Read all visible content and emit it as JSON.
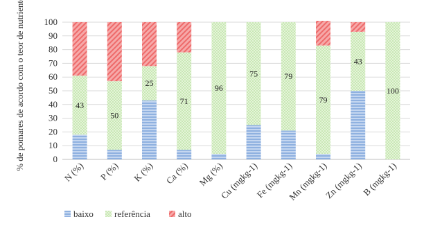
{
  "chart_data": {
    "type": "bar",
    "stacked": true,
    "orientation": "vertical",
    "categories": [
      "N (%)",
      "P (%)",
      "K (%)",
      "Ca (%)",
      "Mg (%)",
      "Cu (mgkg-1)",
      "Fe (mgkg-1)",
      "Mn (mgkg-1)",
      "Zn (mgkg-1)",
      "B (mgkg-1)"
    ],
    "series": [
      {
        "name": "baixo",
        "color": "#8fb1e0",
        "pattern": "horizontal-stripes",
        "values": [
          18,
          7,
          43,
          7,
          4,
          25,
          21,
          4,
          50,
          0
        ]
      },
      {
        "name": "referência",
        "color": "#a9d98c",
        "pattern": "dots",
        "values": [
          43,
          50,
          25,
          71,
          96,
          75,
          79,
          79,
          43,
          100
        ]
      },
      {
        "name": "alto",
        "color": "#ee6a6a",
        "pattern": "diagonal-hatch",
        "values": [
          39,
          43,
          32,
          22,
          0,
          0,
          0,
          18,
          7,
          0
        ]
      }
    ],
    "data_labels": {
      "series": "referência",
      "values": [
        "43",
        "50",
        "25",
        "71",
        "96",
        "75",
        "79",
        "79",
        "43",
        "100"
      ]
    },
    "ylabel": "% de pomares de acordo com o teor de nutriente",
    "xlabel": "",
    "ylim": [
      0,
      100
    ],
    "yticks": [
      "0",
      "10",
      "20",
      "30",
      "40",
      "50",
      "60",
      "70",
      "80",
      "90",
      "100"
    ],
    "grid": true,
    "legend_position": "bottom-left"
  }
}
